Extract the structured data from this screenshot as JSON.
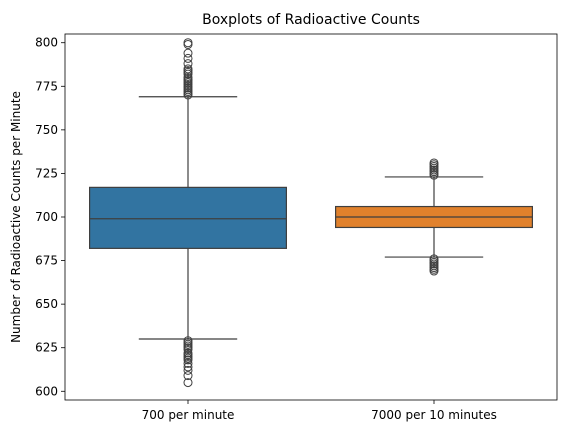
{
  "chart_data": {
    "type": "boxplot",
    "title": "Boxplots of Radioactive Counts",
    "xlabel": "",
    "ylabel": "Number of Radioactive Counts per Minute",
    "ylim": [
      595,
      805
    ],
    "yticks": [
      600,
      625,
      650,
      675,
      700,
      725,
      750,
      775,
      800
    ],
    "grid": false,
    "legend": "none",
    "categories": [
      "700 per minute",
      "7000 per 10 minutes"
    ],
    "boxes": [
      {
        "category": "700 per minute",
        "color": "#3274a1",
        "q1": 682,
        "median": 699,
        "q3": 717,
        "whisker_low": 630,
        "whisker_high": 769,
        "outliers_low": [
          629,
          628,
          627,
          626,
          625,
          624,
          622,
          621,
          620,
          619,
          618,
          616,
          614,
          612,
          609,
          605
        ],
        "outliers_high": [
          770,
          771,
          772,
          773,
          774,
          775,
          776,
          777,
          778,
          779,
          780,
          782,
          783,
          784,
          785,
          788,
          791,
          794,
          799,
          800
        ]
      },
      {
        "category": "7000 per 10 minutes",
        "color": "#e1812c",
        "q1": 694,
        "median": 700,
        "q3": 706,
        "whisker_low": 677,
        "whisker_high": 723,
        "outliers_low": [
          676,
          675,
          674,
          673,
          672,
          671,
          670,
          669
        ],
        "outliers_high": [
          724,
          725,
          726,
          727,
          728,
          729,
          730,
          731
        ]
      }
    ]
  }
}
